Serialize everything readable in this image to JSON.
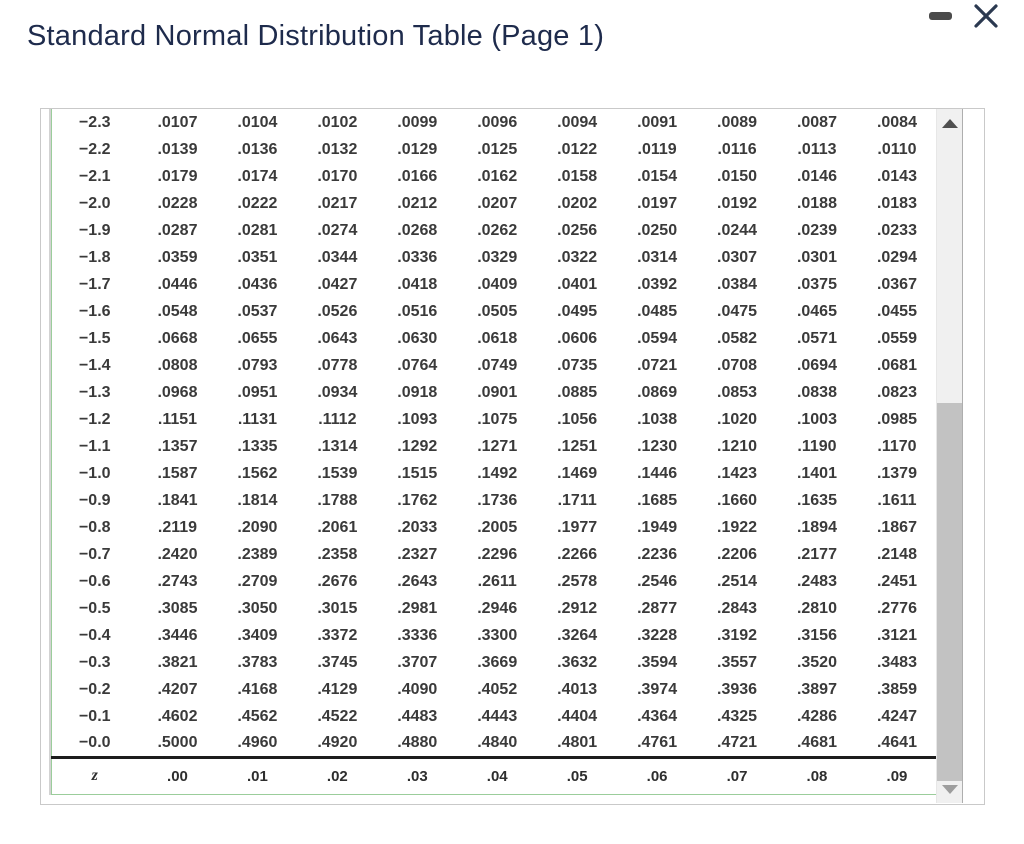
{
  "window": {
    "title": "Standard Normal Distribution Table (Page 1)",
    "controls": {
      "minimize": "minimize",
      "close": "close"
    }
  },
  "colors": {
    "title_navy": "#1e2b4c",
    "table_border_green": "#9bcd9b",
    "table_text": "#3a3a3a",
    "divider_black": "#1c1c1c",
    "scrollbar_track": "#f0f0f0",
    "scrollbar_thumb": "#c2c2c2"
  },
  "icons": {
    "minimize": "minimize-icon",
    "close": "close-icon",
    "scroll_up": "scroll-up-icon",
    "scroll_down": "scroll-down-icon"
  },
  "table": {
    "corner_header": "z",
    "column_headers": [
      ".00",
      ".01",
      ".02",
      ".03",
      ".04",
      ".05",
      ".06",
      ".07",
      ".08",
      ".09"
    ],
    "rows": [
      {
        "z": "−2.3",
        "values": [
          ".0107",
          ".0104",
          ".0102",
          ".0099",
          ".0096",
          ".0094",
          ".0091",
          ".0089",
          ".0087",
          ".0084"
        ]
      },
      {
        "z": "−2.2",
        "values": [
          ".0139",
          ".0136",
          ".0132",
          ".0129",
          ".0125",
          ".0122",
          ".0119",
          ".0116",
          ".0113",
          ".0110"
        ]
      },
      {
        "z": "−2.1",
        "values": [
          ".0179",
          ".0174",
          ".0170",
          ".0166",
          ".0162",
          ".0158",
          ".0154",
          ".0150",
          ".0146",
          ".0143"
        ]
      },
      {
        "z": "−2.0",
        "values": [
          ".0228",
          ".0222",
          ".0217",
          ".0212",
          ".0207",
          ".0202",
          ".0197",
          ".0192",
          ".0188",
          ".0183"
        ]
      },
      {
        "z": "−1.9",
        "values": [
          ".0287",
          ".0281",
          ".0274",
          ".0268",
          ".0262",
          ".0256",
          ".0250",
          ".0244",
          ".0239",
          ".0233"
        ]
      },
      {
        "z": "−1.8",
        "values": [
          ".0359",
          ".0351",
          ".0344",
          ".0336",
          ".0329",
          ".0322",
          ".0314",
          ".0307",
          ".0301",
          ".0294"
        ]
      },
      {
        "z": "−1.7",
        "values": [
          ".0446",
          ".0436",
          ".0427",
          ".0418",
          ".0409",
          ".0401",
          ".0392",
          ".0384",
          ".0375",
          ".0367"
        ]
      },
      {
        "z": "−1.6",
        "values": [
          ".0548",
          ".0537",
          ".0526",
          ".0516",
          ".0505",
          ".0495",
          ".0485",
          ".0475",
          ".0465",
          ".0455"
        ]
      },
      {
        "z": "−1.5",
        "values": [
          ".0668",
          ".0655",
          ".0643",
          ".0630",
          ".0618",
          ".0606",
          ".0594",
          ".0582",
          ".0571",
          ".0559"
        ]
      },
      {
        "z": "−1.4",
        "values": [
          ".0808",
          ".0793",
          ".0778",
          ".0764",
          ".0749",
          ".0735",
          ".0721",
          ".0708",
          ".0694",
          ".0681"
        ]
      },
      {
        "z": "−1.3",
        "values": [
          ".0968",
          ".0951",
          ".0934",
          ".0918",
          ".0901",
          ".0885",
          ".0869",
          ".0853",
          ".0838",
          ".0823"
        ]
      },
      {
        "z": "−1.2",
        "values": [
          ".1151",
          ".1131",
          ".1112",
          ".1093",
          ".1075",
          ".1056",
          ".1038",
          ".1020",
          ".1003",
          ".0985"
        ]
      },
      {
        "z": "−1.1",
        "values": [
          ".1357",
          ".1335",
          ".1314",
          ".1292",
          ".1271",
          ".1251",
          ".1230",
          ".1210",
          ".1190",
          ".1170"
        ]
      },
      {
        "z": "−1.0",
        "values": [
          ".1587",
          ".1562",
          ".1539",
          ".1515",
          ".1492",
          ".1469",
          ".1446",
          ".1423",
          ".1401",
          ".1379"
        ]
      },
      {
        "z": "−0.9",
        "values": [
          ".1841",
          ".1814",
          ".1788",
          ".1762",
          ".1736",
          ".1711",
          ".1685",
          ".1660",
          ".1635",
          ".1611"
        ]
      },
      {
        "z": "−0.8",
        "values": [
          ".2119",
          ".2090",
          ".2061",
          ".2033",
          ".2005",
          ".1977",
          ".1949",
          ".1922",
          ".1894",
          ".1867"
        ]
      },
      {
        "z": "−0.7",
        "values": [
          ".2420",
          ".2389",
          ".2358",
          ".2327",
          ".2296",
          ".2266",
          ".2236",
          ".2206",
          ".2177",
          ".2148"
        ]
      },
      {
        "z": "−0.6",
        "values": [
          ".2743",
          ".2709",
          ".2676",
          ".2643",
          ".2611",
          ".2578",
          ".2546",
          ".2514",
          ".2483",
          ".2451"
        ]
      },
      {
        "z": "−0.5",
        "values": [
          ".3085",
          ".3050",
          ".3015",
          ".2981",
          ".2946",
          ".2912",
          ".2877",
          ".2843",
          ".2810",
          ".2776"
        ]
      },
      {
        "z": "−0.4",
        "values": [
          ".3446",
          ".3409",
          ".3372",
          ".3336",
          ".3300",
          ".3264",
          ".3228",
          ".3192",
          ".3156",
          ".3121"
        ]
      },
      {
        "z": "−0.3",
        "values": [
          ".3821",
          ".3783",
          ".3745",
          ".3707",
          ".3669",
          ".3632",
          ".3594",
          ".3557",
          ".3520",
          ".3483"
        ]
      },
      {
        "z": "−0.2",
        "values": [
          ".4207",
          ".4168",
          ".4129",
          ".4090",
          ".4052",
          ".4013",
          ".3974",
          ".3936",
          ".3897",
          ".3859"
        ]
      },
      {
        "z": "−0.1",
        "values": [
          ".4602",
          ".4562",
          ".4522",
          ".4483",
          ".4443",
          ".4404",
          ".4364",
          ".4325",
          ".4286",
          ".4247"
        ]
      },
      {
        "z": "−0.0",
        "values": [
          ".5000",
          ".4960",
          ".4920",
          ".4880",
          ".4840",
          ".4801",
          ".4761",
          ".4721",
          ".4681",
          ".4641"
        ]
      }
    ]
  }
}
